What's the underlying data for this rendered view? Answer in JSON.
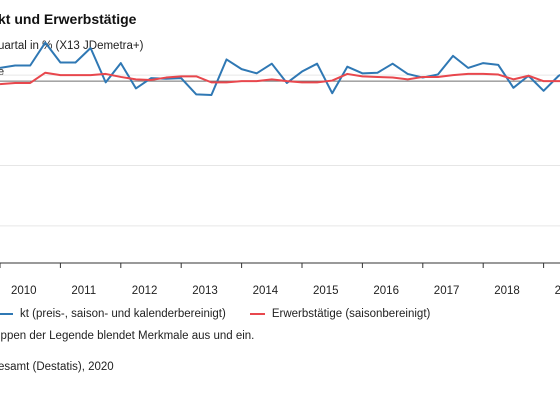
{
  "title": "kt und Erwerbstätige",
  "subtitle": "uartal in % (X13 JDemetra+)",
  "unit_label": "e",
  "legend": {
    "series1_label": "kt (preis-, saison- und kalenderbereinigt)",
    "series2_label": "Erwerbstätige (saisonbereinigt)"
  },
  "hint": "ippen der Legende blendet Merkmale aus und ein.",
  "source": "esamt (Destatis), 2020",
  "colors": {
    "series1": "#2f78b4",
    "series2": "#e8474d",
    "gridline": "#e6e6e6",
    "zeroline": "#6f6f6f",
    "axis": "#333333"
  },
  "chart_data": {
    "type": "line",
    "x_tick_labels": [
      "2010",
      "2011",
      "2012",
      "2013",
      "2014",
      "2015",
      "2016",
      "2017",
      "2018",
      "201"
    ],
    "ylim": [
      -2.6,
      1.0
    ],
    "grid": true,
    "legend_position": "bottom",
    "series": [
      {
        "name": "kt (preis-, saison- und kalenderbereinigt)",
        "values": [
          0.62,
          0.66,
          0.66,
          1.04,
          0.71,
          0.71,
          0.95,
          0.38,
          0.7,
          0.28,
          0.45,
          0.44,
          0.45,
          0.18,
          0.17,
          0.76,
          0.6,
          0.53,
          0.69,
          0.37,
          0.56,
          0.69,
          0.2,
          0.64,
          0.53,
          0.54,
          0.69,
          0.52,
          0.46,
          0.51,
          0.82,
          0.62,
          0.7,
          0.67,
          0.29,
          0.49,
          0.24,
          0.49,
          0.62
        ]
      },
      {
        "name": "Erwerbstätige (saisonbereinigt)",
        "values": [
          0.35,
          0.37,
          0.37,
          0.54,
          0.5,
          0.5,
          0.5,
          0.52,
          0.47,
          0.43,
          0.42,
          0.46,
          0.48,
          0.48,
          0.38,
          0.38,
          0.4,
          0.4,
          0.43,
          0.4,
          0.38,
          0.38,
          0.41,
          0.52,
          0.48,
          0.47,
          0.46,
          0.43,
          0.47,
          0.47,
          0.5,
          0.52,
          0.52,
          0.51,
          0.43,
          0.49,
          0.4,
          0.4,
          0.4
        ]
      }
    ]
  }
}
